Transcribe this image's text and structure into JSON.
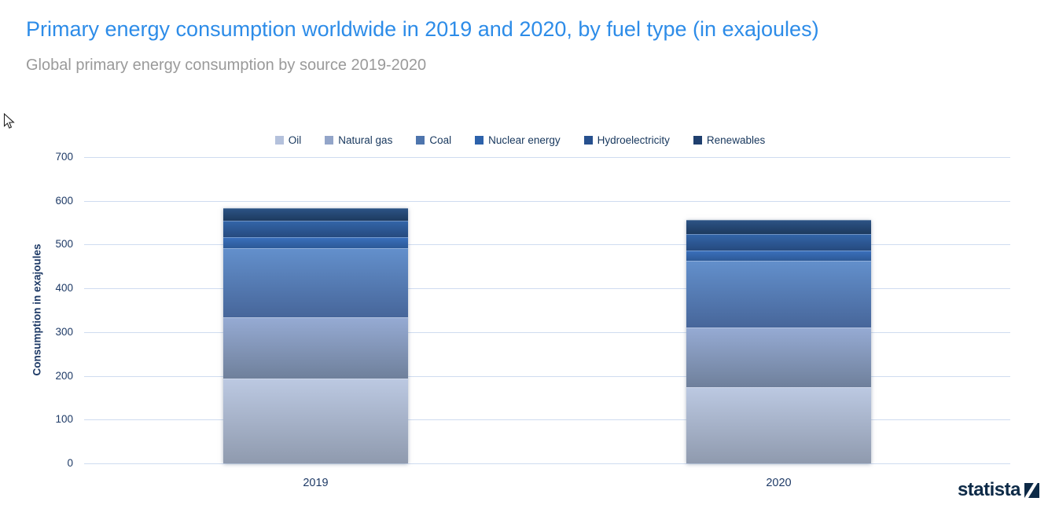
{
  "page": {
    "title": "Primary energy consumption worldwide in 2019 and 2020, by fuel type (in exajoules)",
    "subtitle": "Global primary energy consumption by source 2019-2020",
    "title_color": "#2d8ce8",
    "subtitle_color": "#9a9a9a",
    "brand": "statista",
    "brand_color": "#0d2a47"
  },
  "chart_data": {
    "type": "bar",
    "stacked": true,
    "title": "Primary energy consumption worldwide in 2019 and 2020, by fuel type (in exajoules)",
    "xlabel": "",
    "ylabel": "Consumption in exajoules",
    "categories": [
      "2019",
      "2020"
    ],
    "series": [
      {
        "name": "Oil",
        "values": [
          193.0,
          173.7
        ],
        "legend_color": "#b4c1dc",
        "gradient": [
          "#bcc9e2",
          "#8f9aae"
        ]
      },
      {
        "name": "Natural gas",
        "values": [
          141.5,
          137.6
        ],
        "legend_color": "#93a5c9",
        "gradient": [
          "#96abd4",
          "#6f809b"
        ]
      },
      {
        "name": "Coal",
        "values": [
          157.9,
          151.4
        ],
        "legend_color": "#4e75ad",
        "gradient": [
          "#6390cc",
          "#47669a"
        ]
      },
      {
        "name": "Nuclear energy",
        "values": [
          24.9,
          24.0
        ],
        "legend_color": "#2d62ab",
        "gradient": [
          "#3b71be",
          "#2d5996"
        ]
      },
      {
        "name": "Hydroelectricity",
        "values": [
          37.7,
          38.2
        ],
        "legend_color": "#27508e",
        "gradient": [
          "#3366aa",
          "#264a7e"
        ]
      },
      {
        "name": "Renewables",
        "values": [
          29.0,
          31.7
        ],
        "legend_color": "#1f3f6e",
        "gradient": [
          "#2d5486",
          "#1d3a5f"
        ]
      }
    ],
    "totals": [
      584.0,
      556.6
    ],
    "ylim": [
      0,
      700
    ],
    "ytick_step": 100,
    "yticks": [
      0,
      100,
      200,
      300,
      400,
      500,
      600,
      700
    ],
    "grid": true,
    "gridline_color": "#cfdcf0",
    "legend_position": "top-center"
  }
}
